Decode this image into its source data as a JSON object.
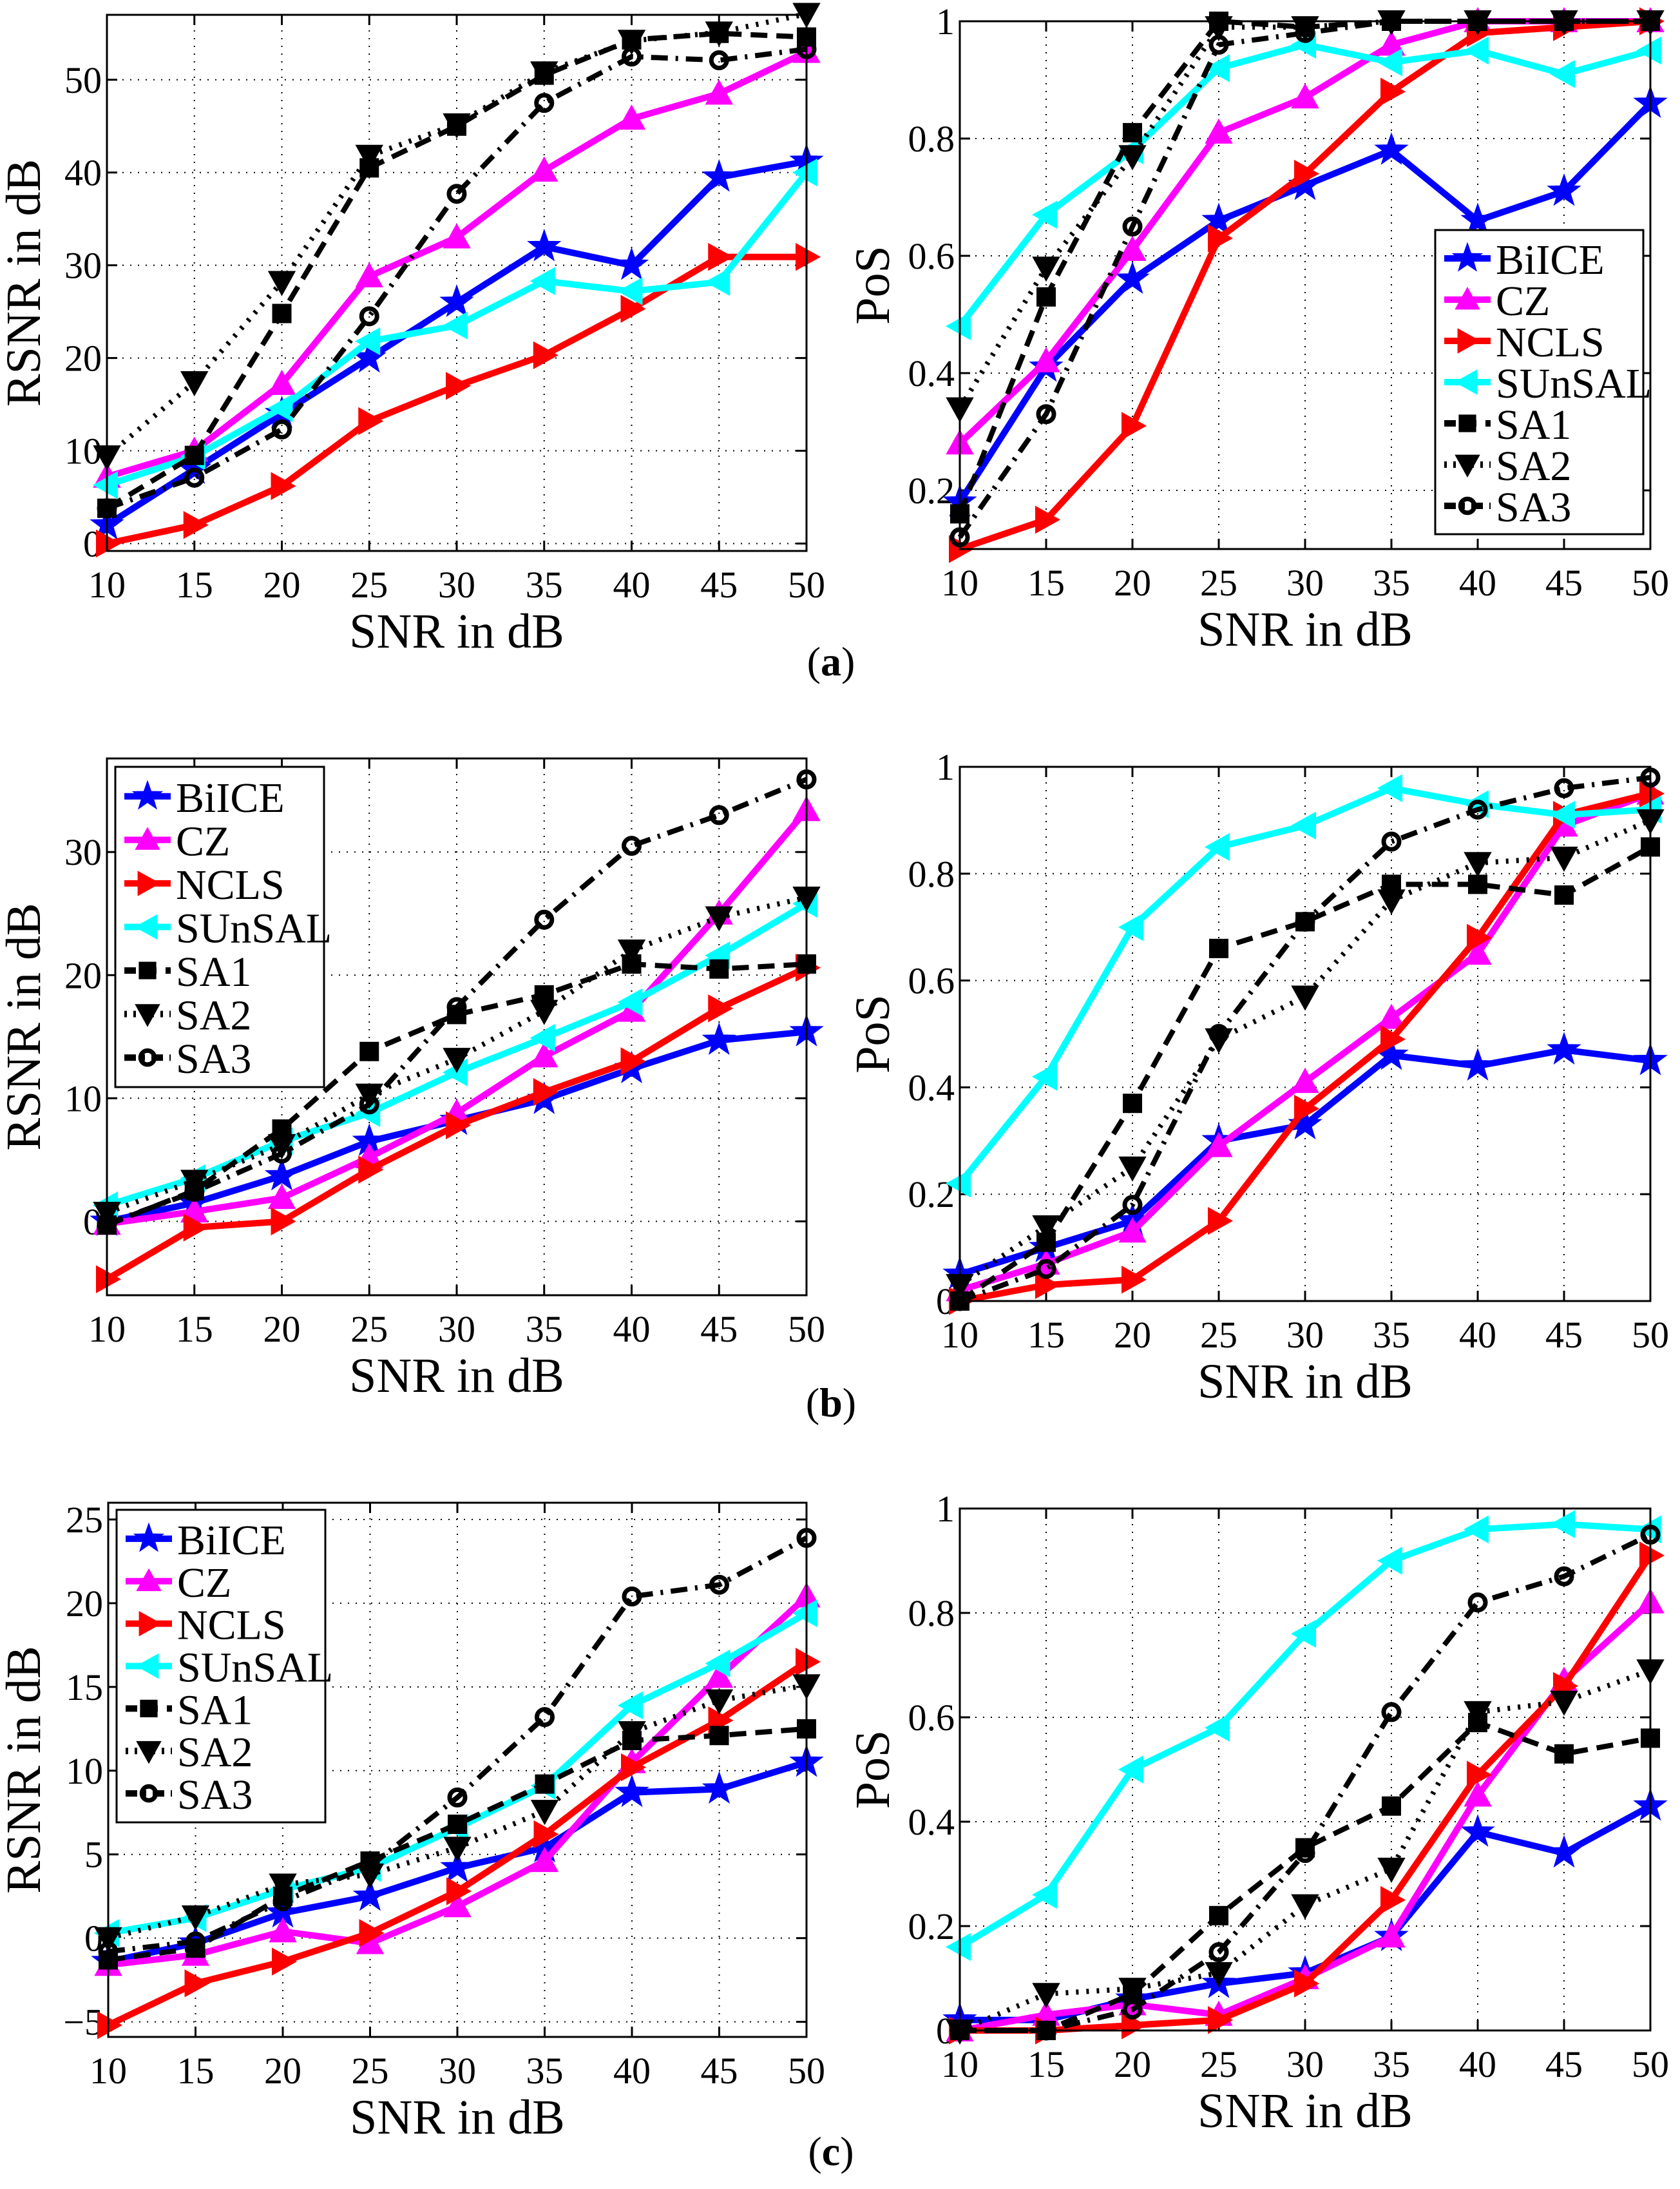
{
  "figure": {
    "captions": [
      "(a)",
      "(b)",
      "(c)"
    ]
  },
  "series_styles": [
    {
      "name": "BiICE",
      "color": "#0000ff",
      "dash": "solid",
      "marker": "star",
      "marker_fill": "filled"
    },
    {
      "name": "CZ",
      "color": "#ff00ff",
      "dash": "solid",
      "marker": "triangle-up",
      "marker_fill": "filled"
    },
    {
      "name": "NCLS",
      "color": "#ff0000",
      "dash": "solid",
      "marker": "triangle-right",
      "marker_fill": "filled"
    },
    {
      "name": "SUnSAL",
      "color": "#00ffff",
      "dash": "solid",
      "marker": "triangle-left",
      "marker_fill": "filled"
    },
    {
      "name": "SA1",
      "color": "#000000",
      "dash": "dashed",
      "marker": "square",
      "marker_fill": "filled"
    },
    {
      "name": "SA2",
      "color": "#000000",
      "dash": "dotted",
      "marker": "triangle-down",
      "marker_fill": "filled"
    },
    {
      "name": "SA3",
      "color": "#000000",
      "dash": "dashdot",
      "marker": "circle",
      "marker_fill": "open"
    }
  ],
  "chart_data": [
    {
      "id": "a-rsnr",
      "panel": "(a)",
      "type": "line",
      "title": "",
      "xlabel": "SNR in dB",
      "ylabel": "RSNR in dB",
      "x": [
        10,
        15,
        20,
        25,
        30,
        35,
        40,
        45,
        50
      ],
      "xlim": [
        10,
        50
      ],
      "ylim": [
        -0.8,
        57
      ],
      "xticks": [
        "10",
        "15",
        "20",
        "25",
        "30",
        "35",
        "40",
        "45",
        "50"
      ],
      "yticks": [
        0,
        10,
        20,
        30,
        40,
        50
      ],
      "ytick_labels": [
        "0",
        "10",
        "20",
        "30",
        "40",
        "50"
      ],
      "grid": true,
      "legend": null,
      "series": [
        {
          "name": "BiICE",
          "values": [
            2,
            8,
            14,
            20,
            26,
            32,
            30,
            39.5,
            41.2
          ]
        },
        {
          "name": "CZ",
          "values": [
            7.2,
            10,
            17.2,
            28.8,
            33,
            40.2,
            45.8,
            48.5,
            53
          ]
        },
        {
          "name": "NCLS",
          "values": [
            0,
            2,
            6.2,
            13.2,
            17,
            20.3,
            25.3,
            30.9,
            30.9
          ]
        },
        {
          "name": "SUnSAL",
          "values": [
            6.3,
            9.4,
            14.6,
            21.8,
            23.5,
            28.3,
            27.2,
            28.2,
            40
          ]
        },
        {
          "name": "SA1",
          "values": [
            3.8,
            9.5,
            24.8,
            40.5,
            45,
            50.5,
            54.3,
            55,
            54.6
          ]
        },
        {
          "name": "SA2",
          "values": [
            9.4,
            17.4,
            28.2,
            41.8,
            45.2,
            50.8,
            54.2,
            55.1,
            57.1
          ]
        },
        {
          "name": "SA3",
          "values": [
            3.8,
            7.1,
            12.3,
            24.5,
            37.7,
            47.5,
            52.5,
            52.1,
            53.3
          ]
        }
      ]
    },
    {
      "id": "a-pos",
      "panel": "(a)",
      "type": "line",
      "title": "",
      "xlabel": "SNR in dB",
      "ylabel": "PoS",
      "x": [
        10,
        15,
        20,
        25,
        30,
        35,
        40,
        45,
        50
      ],
      "xlim": [
        10,
        50
      ],
      "ylim": [
        0.1,
        1
      ],
      "xticks": [
        "10",
        "15",
        "20",
        "25",
        "30",
        "35",
        "40",
        "45",
        "50"
      ],
      "yticks": [
        0.2,
        0.4,
        0.6,
        0.8,
        1
      ],
      "ytick_labels": [
        "0.2",
        "0.4",
        "0.6",
        "0.8",
        "1"
      ],
      "grid": true,
      "legend": "bottom-right",
      "series": [
        {
          "name": "BiICE",
          "values": [
            0.18,
            0.41,
            0.56,
            0.66,
            0.72,
            0.78,
            0.66,
            0.71,
            0.86
          ]
        },
        {
          "name": "CZ",
          "values": [
            0.28,
            0.42,
            0.61,
            0.81,
            0.87,
            0.96,
            1.0,
            1.0,
            1.0
          ]
        },
        {
          "name": "NCLS",
          "values": [
            0.1,
            0.15,
            0.31,
            0.63,
            0.74,
            0.88,
            0.98,
            0.99,
            1.0
          ]
        },
        {
          "name": "SUnSAL",
          "values": [
            0.48,
            0.67,
            0.78,
            0.92,
            0.96,
            0.93,
            0.95,
            0.91,
            0.95
          ]
        },
        {
          "name": "SA1",
          "values": [
            0.16,
            0.53,
            0.81,
            1.0,
            0.99,
            1.0,
            1.0,
            1.0,
            1.0
          ]
        },
        {
          "name": "SA2",
          "values": [
            0.34,
            0.58,
            0.77,
            0.99,
            0.99,
            1.0,
            1.0,
            1.0,
            1.0
          ]
        },
        {
          "name": "SA3",
          "values": [
            0.12,
            0.33,
            0.65,
            0.96,
            0.98,
            1.0,
            1.0,
            1.0,
            1.0
          ]
        }
      ]
    },
    {
      "id": "b-rsnr",
      "panel": "(b)",
      "type": "line",
      "title": "",
      "xlabel": "SNR in dB",
      "ylabel": "RSNR in dB",
      "x": [
        10,
        15,
        20,
        25,
        30,
        35,
        40,
        45,
        50
      ],
      "xlim": [
        10,
        50
      ],
      "ylim": [
        -6,
        37.6
      ],
      "xticks": [
        "10",
        "15",
        "20",
        "25",
        "30",
        "35",
        "40",
        "45",
        "50"
      ],
      "yticks": [
        0,
        10,
        20,
        30
      ],
      "ytick_labels": [
        "0",
        "10",
        "20",
        "30"
      ],
      "grid": true,
      "legend": "top-left",
      "series": [
        {
          "name": "BiICE",
          "values": [
            0,
            1.5,
            3.7,
            6.5,
            8.2,
            9.9,
            12.4,
            14.7,
            15.4
          ]
        },
        {
          "name": "CZ",
          "values": [
            -0.2,
            0.8,
            1.9,
            5.2,
            8.8,
            13.4,
            17.1,
            25,
            33.4
          ]
        },
        {
          "name": "NCLS",
          "values": [
            -4.7,
            -0.5,
            0,
            4.2,
            7.8,
            10.5,
            13,
            17.3,
            20.6
          ]
        },
        {
          "name": "SUnSAL",
          "values": [
            1.3,
            3.5,
            6.5,
            8.8,
            12.1,
            14.9,
            17.8,
            21.6,
            25.8
          ]
        },
        {
          "name": "SA1",
          "values": [
            -0.3,
            2.5,
            7.5,
            13.8,
            16.8,
            18.4,
            20.9,
            20.5,
            20.9
          ]
        },
        {
          "name": "SA2",
          "values": [
            0.7,
            3.3,
            6.2,
            10.3,
            13.2,
            17.1,
            22,
            24.7,
            26.3
          ]
        },
        {
          "name": "SA3",
          "values": [
            -0.2,
            2.4,
            5.5,
            9.5,
            17.4,
            24.5,
            30.5,
            33,
            35.9
          ]
        }
      ]
    },
    {
      "id": "b-pos",
      "panel": "(b)",
      "type": "line",
      "title": "",
      "xlabel": "SNR in dB",
      "ylabel": "PoS",
      "x": [
        10,
        15,
        20,
        25,
        30,
        35,
        40,
        45,
        50
      ],
      "xlim": [
        10,
        50
      ],
      "ylim": [
        0,
        1
      ],
      "xticks": [
        "10",
        "15",
        "20",
        "25",
        "30",
        "35",
        "40",
        "45",
        "50"
      ],
      "yticks": [
        0,
        0.2,
        0.4,
        0.6,
        0.8,
        1
      ],
      "ytick_labels": [
        "0",
        "0.2",
        "0.4",
        "0.6",
        "0.8",
        "1"
      ],
      "grid": true,
      "legend": null,
      "series": [
        {
          "name": "BiICE",
          "values": [
            0.05,
            0.1,
            0.15,
            0.3,
            0.33,
            0.46,
            0.44,
            0.47,
            0.45
          ]
        },
        {
          "name": "CZ",
          "values": [
            0.02,
            0.07,
            0.13,
            0.29,
            0.41,
            0.53,
            0.65,
            0.89,
            0.95
          ]
        },
        {
          "name": "NCLS",
          "values": [
            0,
            0.03,
            0.04,
            0.15,
            0.36,
            0.49,
            0.68,
            0.91,
            0.95
          ]
        },
        {
          "name": "SUnSAL",
          "values": [
            0.22,
            0.42,
            0.7,
            0.85,
            0.89,
            0.96,
            0.93,
            0.91,
            0.92
          ]
        },
        {
          "name": "SA1",
          "values": [
            0,
            0.11,
            0.37,
            0.66,
            0.71,
            0.78,
            0.78,
            0.76,
            0.85
          ]
        },
        {
          "name": "SA2",
          "values": [
            0.03,
            0.14,
            0.25,
            0.49,
            0.57,
            0.75,
            0.82,
            0.83,
            0.9
          ]
        },
        {
          "name": "SA3",
          "values": [
            0,
            0.06,
            0.18,
            0.5,
            0.71,
            0.86,
            0.92,
            0.96,
            0.98
          ]
        }
      ]
    },
    {
      "id": "c-rsnr",
      "panel": "(c)",
      "type": "line",
      "title": "",
      "xlabel": "SNR in dB",
      "ylabel": "RSNR in dB",
      "x": [
        10,
        15,
        20,
        25,
        30,
        35,
        40,
        45,
        50
      ],
      "xlim": [
        10,
        50
      ],
      "ylim": [
        -5.9,
        26
      ],
      "xticks": [
        "10",
        "15",
        "20",
        "25",
        "30",
        "35",
        "40",
        "45",
        "50"
      ],
      "yticks": [
        -5,
        0,
        5,
        10,
        15,
        20,
        25
      ],
      "ytick_labels": [
        "−5",
        "0",
        "5",
        "10",
        "15",
        "20",
        "25"
      ],
      "grid": true,
      "legend": "top-left",
      "series": [
        {
          "name": "BiICE",
          "values": [
            -1.4,
            -0.3,
            1.5,
            2.5,
            4.2,
            5.4,
            8.7,
            8.9,
            10.5
          ]
        },
        {
          "name": "CZ",
          "values": [
            -1.6,
            -1.0,
            0.4,
            -0.3,
            1.9,
            4.6,
            10.5,
            15.6,
            20.4
          ]
        },
        {
          "name": "NCLS",
          "values": [
            -5.2,
            -2.7,
            -1.4,
            0.3,
            2.8,
            6.2,
            10.2,
            13,
            16.5
          ]
        },
        {
          "name": "SUnSAL",
          "values": [
            0.3,
            1.2,
            2.9,
            4.2,
            6.6,
            9.1,
            13.9,
            16.4,
            19.4
          ]
        },
        {
          "name": "SA1",
          "values": [
            -1.3,
            -0.6,
            2.5,
            4.6,
            6.8,
            9.2,
            11.8,
            12.1,
            12.5
          ]
        },
        {
          "name": "SA2",
          "values": [
            0,
            1.3,
            3.2,
            3.8,
            5.4,
            7.6,
            12.3,
            14.2,
            15.1
          ]
        },
        {
          "name": "SA3",
          "values": [
            -0.8,
            -0.2,
            2.2,
            4.3,
            8.4,
            13.2,
            20.4,
            21.1,
            23.9
          ]
        }
      ]
    },
    {
      "id": "c-pos",
      "panel": "(c)",
      "type": "line",
      "title": "",
      "xlabel": "SNR in dB",
      "ylabel": "PoS",
      "x": [
        10,
        15,
        20,
        25,
        30,
        35,
        40,
        45,
        50
      ],
      "xlim": [
        10,
        50
      ],
      "ylim": [
        0,
        1
      ],
      "xticks": [
        "10",
        "15",
        "20",
        "25",
        "30",
        "35",
        "40",
        "45",
        "50"
      ],
      "yticks": [
        0,
        0.2,
        0.4,
        0.6,
        0.8,
        1
      ],
      "ytick_labels": [
        "0",
        "0.2",
        "0.4",
        "0.6",
        "0.8",
        "1"
      ],
      "grid": true,
      "legend": null,
      "series": [
        {
          "name": "BiICE",
          "values": [
            0.02,
            0.02,
            0.06,
            0.09,
            0.11,
            0.18,
            0.38,
            0.34,
            0.43
          ]
        },
        {
          "name": "CZ",
          "values": [
            0,
            0.03,
            0.05,
            0.03,
            0.1,
            0.18,
            0.45,
            0.67,
            0.82
          ]
        },
        {
          "name": "NCLS",
          "values": [
            0,
            0,
            0.01,
            0.02,
            0.09,
            0.25,
            0.49,
            0.66,
            0.91
          ]
        },
        {
          "name": "SUnSAL",
          "values": [
            0.16,
            0.26,
            0.5,
            0.58,
            0.76,
            0.9,
            0.96,
            0.97,
            0.96
          ]
        },
        {
          "name": "SA1",
          "values": [
            0,
            0,
            0.07,
            0.22,
            0.35,
            0.43,
            0.59,
            0.53,
            0.56
          ]
        },
        {
          "name": "SA2",
          "values": [
            0,
            0.07,
            0.08,
            0.11,
            0.24,
            0.31,
            0.61,
            0.63,
            0.69
          ]
        },
        {
          "name": "SA3",
          "values": [
            0,
            0,
            0.04,
            0.15,
            0.34,
            0.61,
            0.82,
            0.87,
            0.95
          ]
        }
      ]
    }
  ]
}
